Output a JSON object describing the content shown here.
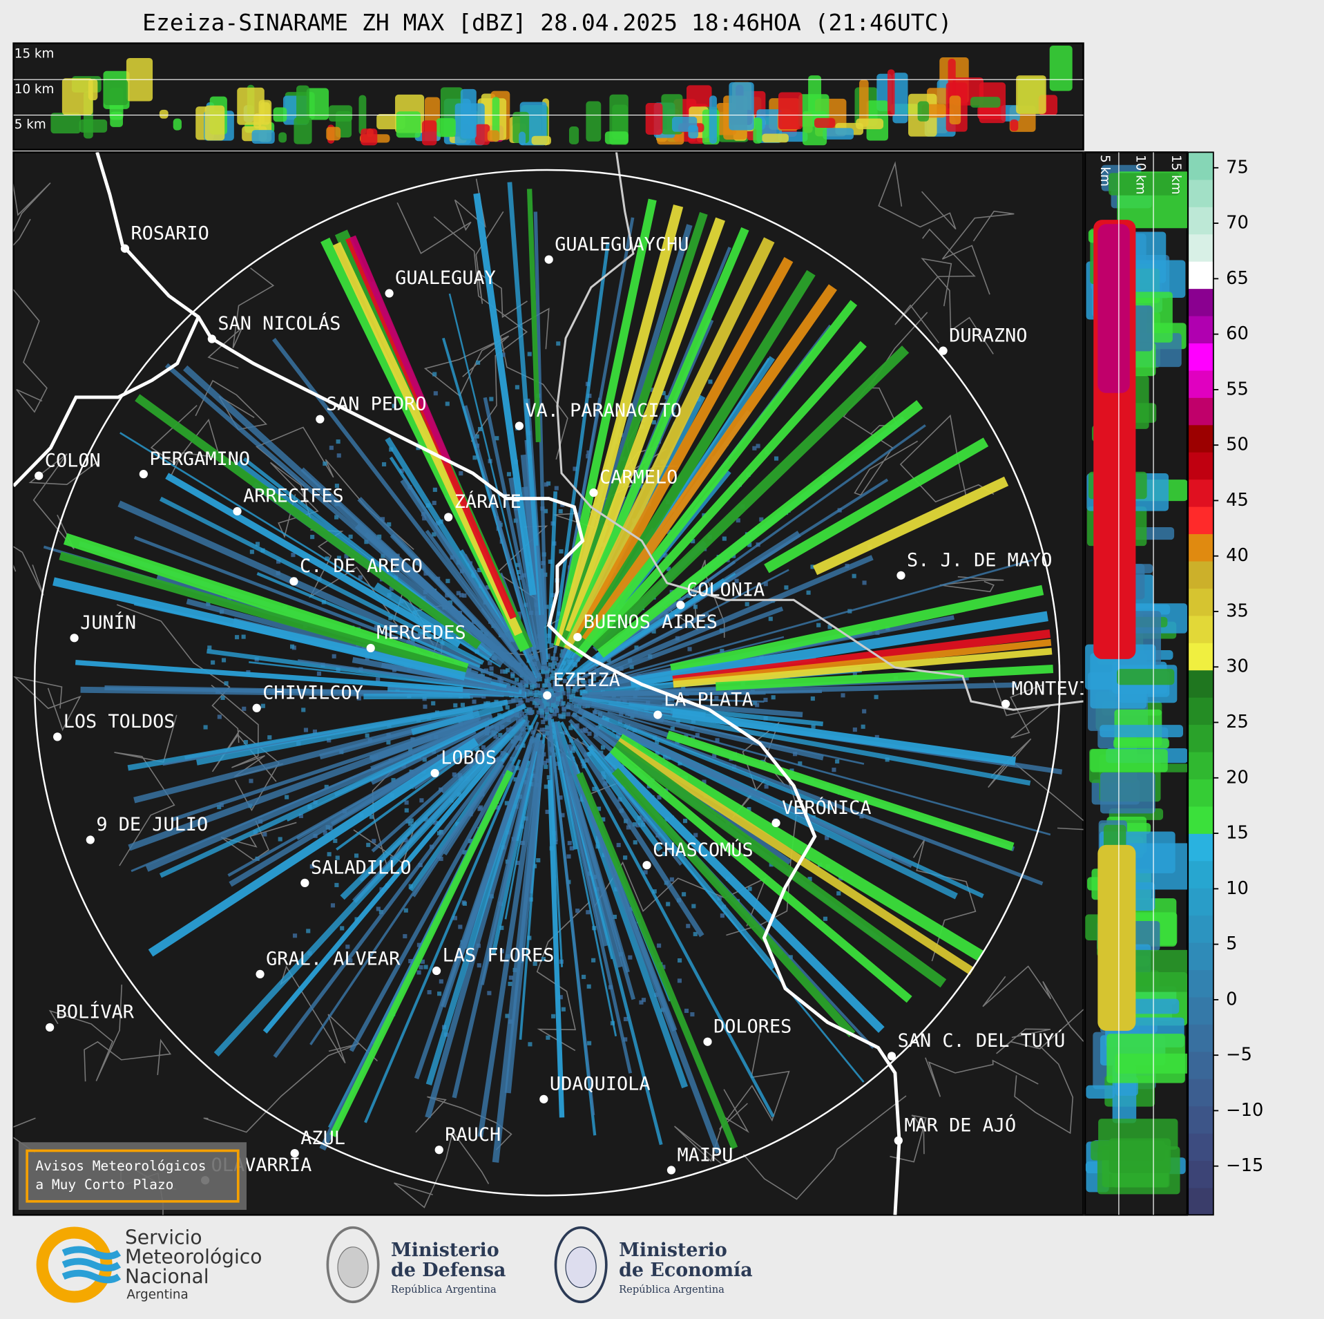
{
  "title": "Ezeiza-SINARAME ZH MAX [dBZ] 28.04.2025 18:46HOA (21:46UTC)",
  "top_panel_labels": [
    "15 km",
    "10 km",
    "5 km"
  ],
  "side_panel_labels": [
    "5 km",
    "10 km",
    "15 km"
  ],
  "cities": [
    "ROSARIO",
    "GUALEGUAYCHU",
    "GUALEGUAY",
    "SAN NICOLÁS",
    "SAN PEDRO",
    "VA. PARANACITO",
    "DURAZNO",
    "COLON",
    "PERGAMINO",
    "CARMELO",
    "ARRECIFES",
    "ZÁRATE",
    "C. DE ARECO",
    "S. J. DE MAYO",
    "COLONIA",
    "JUNÍN",
    "BUENOS AIRES",
    "MERCEDES",
    "EZEIZA",
    "MONTEVIDEO",
    "LA PLATA",
    "CHIVILCOY",
    "LOS TOLDOS",
    "LOBOS",
    "VERÓNICA",
    "9 DE JULIO",
    "CHASCOMÚS",
    "SALADILLO",
    "GRAL. ALVEAR",
    "LAS FLORES",
    "BOLÍVAR",
    "DOLORES",
    "SAN C. DEL TUYÚ",
    "UDAQUIOLA",
    "MAR DE AJÓ",
    "AZUL",
    "RAUCH",
    "OLAVARRÍA",
    "MAIPU"
  ],
  "colorbar": {
    "lim": [
      -19.4,
      76.4
    ],
    "ticks": [
      75,
      70,
      65,
      60,
      55,
      50,
      45,
      40,
      35,
      30,
      25,
      20,
      15,
      10,
      5,
      0,
      {
        "value": -5,
        "label": "−5"
      },
      {
        "value": -10,
        "label": "−10"
      },
      {
        "value": -15,
        "label": "−15"
      }
    ],
    "colors": [
      "#3a3d6a",
      "#3c4476",
      "#3d4c80",
      "#3d5588",
      "#3c5e90",
      "#3a6798",
      "#3870a0",
      "#3579a8",
      "#3282b0",
      "#2f8bb8",
      "#2c94c0",
      "#299dc8",
      "#27a6d0",
      "#29b2e0",
      "#3be03b",
      "#35cc35",
      "#30b830",
      "#2aa22a",
      "#248c24",
      "#1f761f",
      "#f0ef40",
      "#e2d838",
      "#d6c430",
      "#ccb02a",
      "#e08a10",
      "#ff2a2a",
      "#e01020",
      "#c00010",
      "#9c0000",
      "#c0006a",
      "#e000c0",
      "#ff00ff",
      "#b000b0",
      "#8a0090",
      "#ffffff",
      "#d8f0e6",
      "#bde8d6",
      "#a2e0c6",
      "#86d6b6"
    ]
  },
  "alert_box": {
    "lines": [
      "Avisos Meteorológicos",
      "a Muy Corto Plazo"
    ]
  },
  "logos": {
    "smn": [
      "Servicio",
      "Meteorológico",
      "Nacional",
      "Argentina"
    ],
    "defensa": {
      "title": [
        "Ministerio",
        "de Defensa"
      ],
      "subtitle": "República Argentina"
    },
    "economia": {
      "title": [
        "Ministerio",
        "de Economía"
      ],
      "subtitle": "República Argentina"
    }
  }
}
